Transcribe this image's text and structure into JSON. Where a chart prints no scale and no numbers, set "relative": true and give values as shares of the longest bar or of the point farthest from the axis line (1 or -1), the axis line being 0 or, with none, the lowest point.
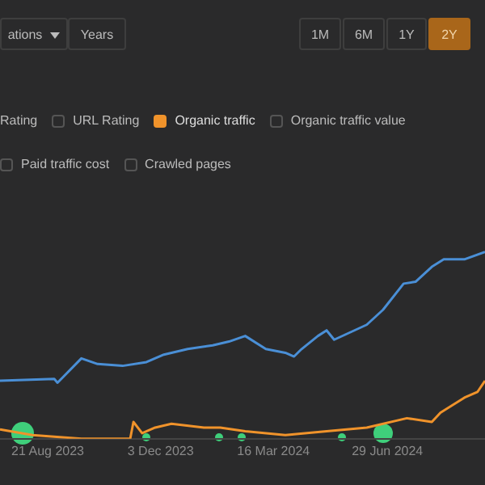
{
  "chart_data": {
    "type": "line",
    "relative": true,
    "legend": "top",
    "marker": "none",
    "annotations": [
      "ations",
      "Years",
      "1M",
      "6M",
      "1Y",
      "2Y",
      "Rating",
      "URL Rating",
      "Organic traffic value",
      "Paid traffic cost",
      "Crawled pages"
    ],
    "xlim": [
      "2023-07-08",
      "2024-09-27"
    ],
    "xticks": [
      {
        "value": "2023-08-21",
        "label": "21 Aug 2023"
      },
      {
        "value": "2023-12-03",
        "label": "3 Dec 2023"
      },
      {
        "value": "2024-03-16",
        "label": "16 Mar 2024"
      },
      {
        "value": "2024-06-29",
        "label": "29 Jun 2024"
      }
    ],
    "series": [
      {
        "color": "#4a8fd6",
        "x": [
          "2023-07-08",
          "2023-08-27",
          "2023-08-30",
          "2023-09-21",
          "2023-10-06",
          "2023-10-29",
          "2023-11-20",
          "2023-12-06",
          "2023-12-28",
          "2024-01-20",
          "2024-02-04",
          "2024-02-19",
          "2024-03-09",
          "2024-03-27",
          "2024-04-04",
          "2024-04-11",
          "2024-04-26",
          "2024-05-04",
          "2024-05-11",
          "2024-05-26",
          "2024-06-10",
          "2024-06-25",
          "2024-07-14",
          "2024-07-25",
          "2024-08-09",
          "2024-08-20",
          "2024-09-08",
          "2024-09-27"
        ],
        "values": [
          0.31,
          0.32,
          0.3,
          0.43,
          0.4,
          0.39,
          0.41,
          0.45,
          0.48,
          0.5,
          0.52,
          0.55,
          0.48,
          0.46,
          0.44,
          0.48,
          0.55,
          0.58,
          0.53,
          0.57,
          0.61,
          0.69,
          0.83,
          0.84,
          0.92,
          0.96,
          0.96,
          1
        ]
      },
      {
        "name": "Organic traffic",
        "color": "#f0932b",
        "x": [
          "2023-07-08",
          "2023-08-07",
          "2023-09-21",
          "2023-11-05",
          "2023-11-08",
          "2023-11-16",
          "2023-11-28",
          "2023-12-13",
          "2024-01-12",
          "2024-01-27",
          "2024-02-19",
          "2024-03-27",
          "2024-05-04",
          "2024-06-10",
          "2024-07-17",
          "2024-08-09",
          "2024-08-17",
          "2024-09-08",
          "2024-09-20",
          "2024-09-27"
        ],
        "values": [
          0.05,
          0.02,
          0,
          0,
          0.09,
          0.03,
          0.06,
          0.08,
          0.06,
          0.06,
          0.04,
          0.02,
          0.04,
          0.06,
          0.11,
          0.09,
          0.14,
          0.22,
          0.25,
          0.31
        ]
      }
    ]
  }
}
